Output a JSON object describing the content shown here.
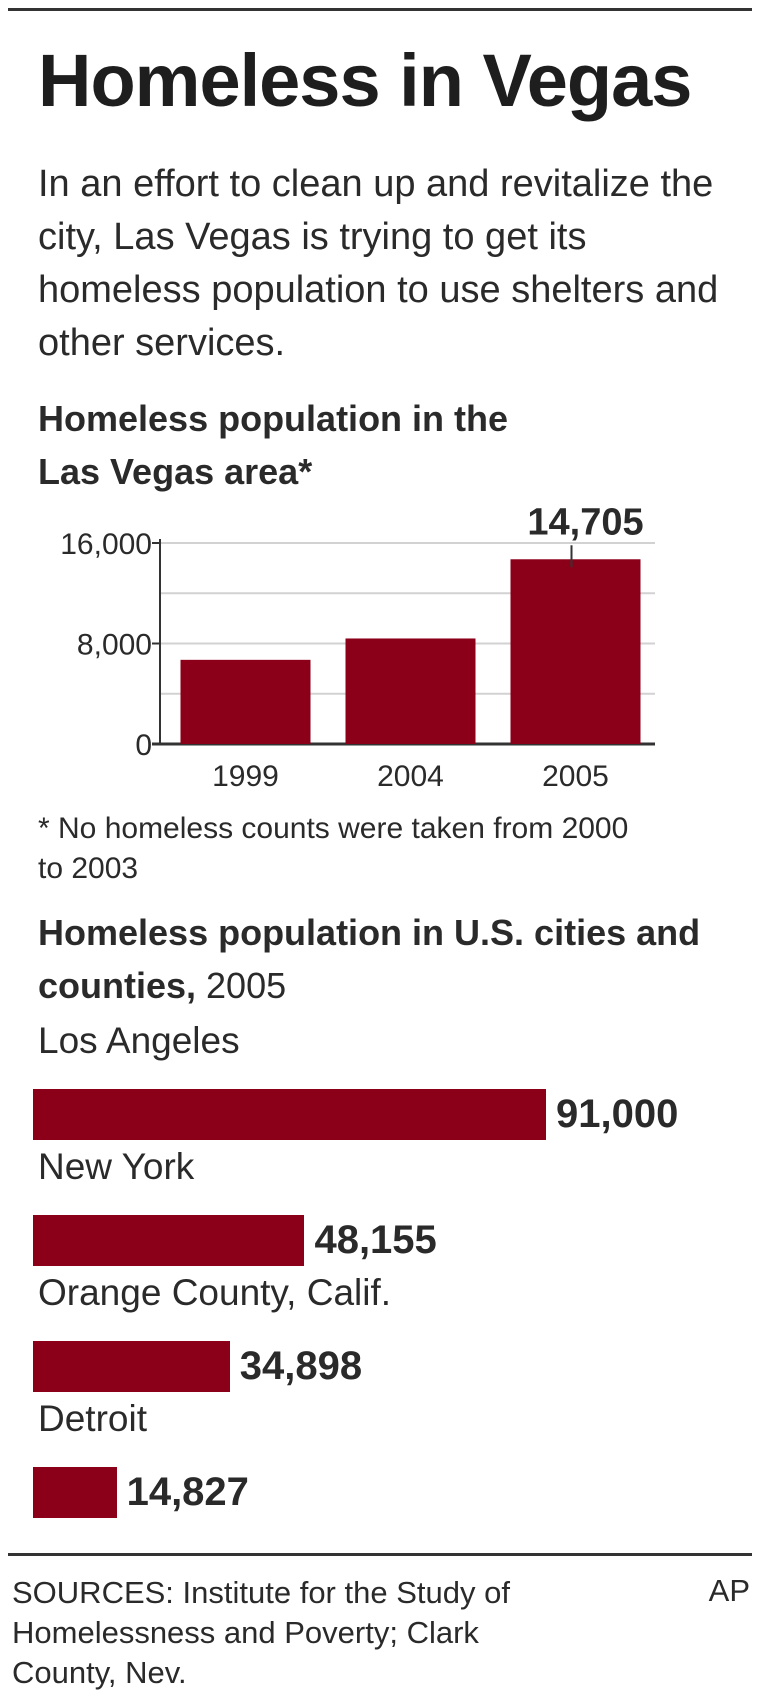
{
  "title": "Homeless in Vegas",
  "intro": "In an effort to clean up and revitalize the city, Las Vegas is trying to get its homeless population to use shelters and other services.",
  "chart_data": [
    {
      "type": "bar",
      "title": "Homeless population in the Las Vegas area*",
      "categories": [
        "1999",
        "2004",
        "2005"
      ],
      "values": [
        6700,
        8400,
        14705
      ],
      "value_labels": [
        "",
        "",
        "14,705"
      ],
      "y_ticks": [
        "0",
        "8,000",
        "16,000"
      ],
      "ylim": [
        0,
        16000
      ],
      "grid": true,
      "bar_color": "#8b0018"
    },
    {
      "type": "bar",
      "orientation": "horizontal",
      "title_bold": "Homeless population in U.S. cities and counties,",
      "title_normal": " 2005",
      "categories": [
        "Los Angeles",
        "New York",
        "Orange County, Calif.",
        "Detroit"
      ],
      "values": [
        91000,
        48155,
        34898,
        14827
      ],
      "value_labels": [
        "91,000",
        "48,155",
        "34,898",
        "14,827"
      ],
      "bar_color": "#8b0018"
    }
  ],
  "footnote": "* No homeless counts were taken from 2000 to 2003",
  "sources": "SOURCES: Institute for the Study of Homelessness and Poverty; Clark County, Nev.",
  "credit": "AP"
}
